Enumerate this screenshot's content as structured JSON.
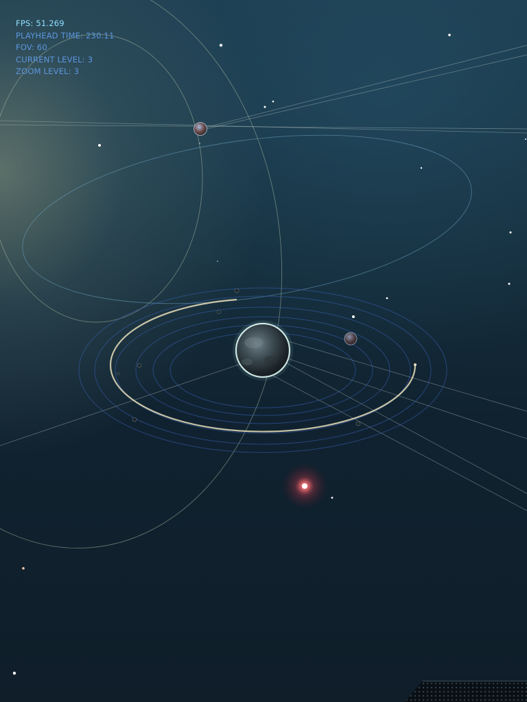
{
  "hud": {
    "fps": "FPS: 51.269",
    "playhead_time": "PLAYHEAD TIME: 230.11",
    "fov": "FOV: 60",
    "current_level": "CURRENT LEVEL: 3",
    "zoom_level": "ZOOM LEVEL: 3"
  },
  "colors": {
    "hud_text": "#5c97e0",
    "fps_text": "#8fe0ff",
    "orbit_line": "#9fb4a6",
    "inner_rings": "#3a5fb0",
    "highlight_arc": "#d8d2b0",
    "red_star": "#ff5a5a"
  },
  "icons": {
    "central_planet": "planet-sphere",
    "small_planet": "planet-sphere",
    "moon": "moon-dot",
    "star": "star-dot",
    "red_star": "glowing-red-star"
  }
}
